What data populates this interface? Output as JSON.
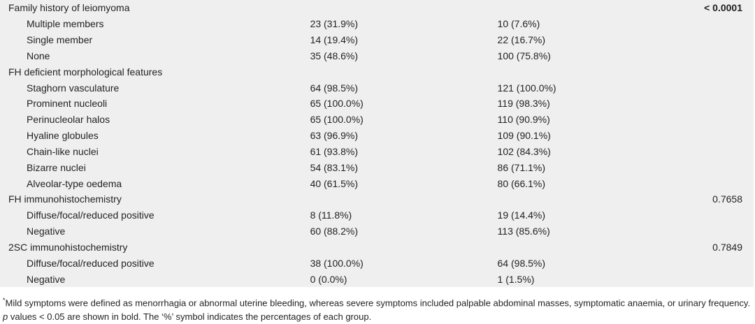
{
  "groups": [
    {
      "title": "Family history of leiomyoma",
      "p": "< 0.0001",
      "rows": [
        [
          "Multiple members",
          "23 (31.9%)",
          "10 (7.6%)"
        ],
        [
          "Single member",
          "14 (19.4%)",
          "22 (16.7%)"
        ],
        [
          "None",
          "35 (48.6%)",
          "100 (75.8%)"
        ]
      ]
    },
    {
      "title": "FH deficient morphological features",
      "rows": [
        [
          "Staghorn vasculature",
          "64 (98.5%)",
          "121 (100.0%)"
        ],
        [
          "Prominent nucleoli",
          "65 (100.0%)",
          "119 (98.3%)"
        ],
        [
          "Perinucleolar halos",
          "65 (100.0%)",
          "110 (90.9%)"
        ],
        [
          "Hyaline globules",
          "63 (96.9%)",
          "109 (90.1%)"
        ],
        [
          "Chain-like nuclei",
          "61 (93.8%)",
          "102 (84.3%)"
        ],
        [
          "Bizarre nuclei",
          "54 (83.1%)",
          "86 (71.1%)"
        ],
        [
          "Alveolar-type oedema",
          "40 (61.5%)",
          "80 (66.1%)"
        ]
      ]
    },
    {
      "title": "FH immunohistochemistry",
      "p": "0.7658",
      "rows": [
        [
          "Diffuse/focal/reduced positive",
          "8 (11.8%)",
          "19 (14.4%)"
        ],
        [
          "Negative",
          "60 (88.2%)",
          "113 (85.6%)"
        ]
      ]
    },
    {
      "title": "2SC immunohistochemistry",
      "p": "0.7849",
      "rows": [
        [
          "Diffuse/focal/reduced positive",
          "38 (100.0%)",
          "64 (98.5%)"
        ],
        [
          "Negative",
          "0 (0.0%)",
          "1 (1.5%)"
        ]
      ]
    }
  ],
  "footnote": [
    "*",
    "Mild symptoms were defined as menorrhagia or abnormal uterine bleeding, whereas severe symptoms included palpable abdominal masses, symptomatic anaemia, or urinary frequency. ",
    "p",
    " values < 0.05 are shown in bold. The ‘%’ symbol indicates the percentages of each group."
  ]
}
